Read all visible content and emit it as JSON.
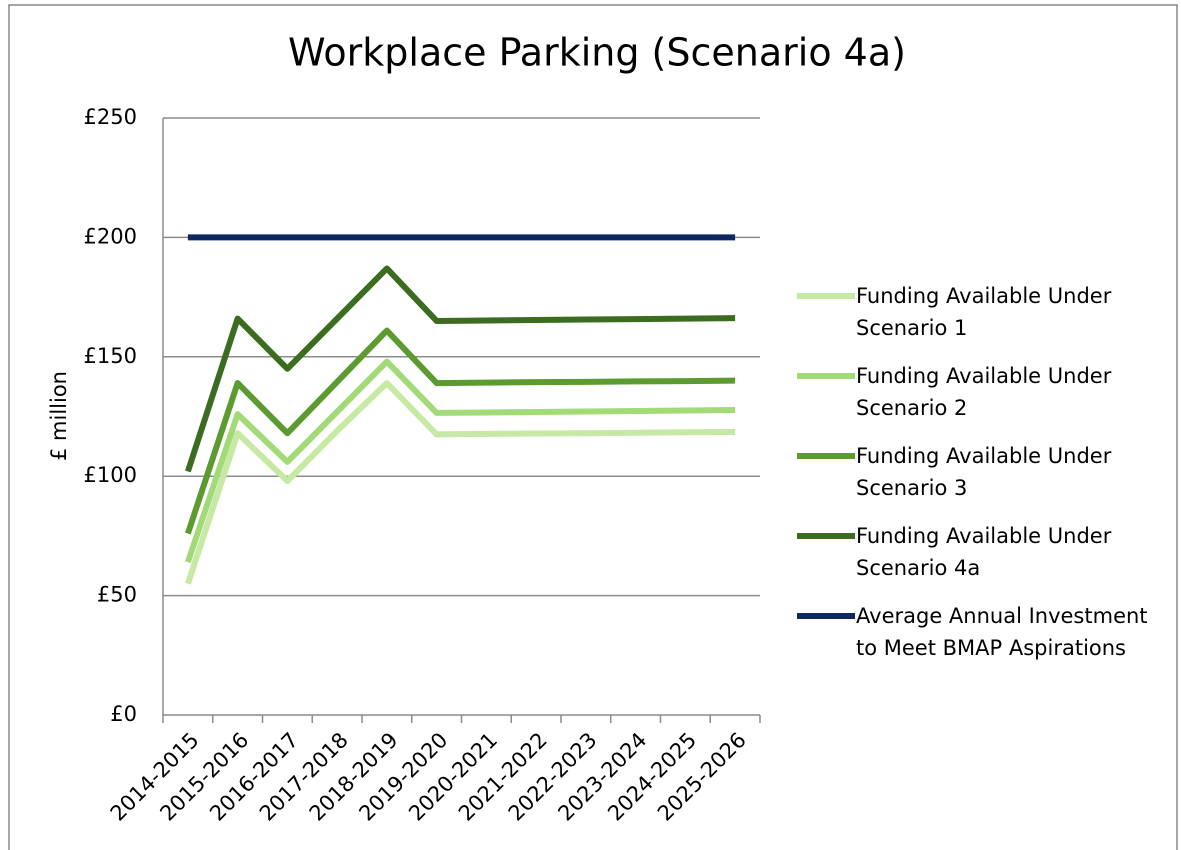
{
  "chart_data": {
    "type": "line",
    "title": "Workplace Parking (Scenario 4a)",
    "y_label": "£ million",
    "categories": [
      "2014-2015",
      "2015-2016",
      "2016-2017",
      "2017-2018",
      "2018-2019",
      "2019-2020",
      "2020-2021",
      "2021-2022",
      "2022-2023",
      "2023-2024",
      "2024-2025",
      "2025-2026"
    ],
    "series": [
      {
        "name": "Funding Available Under Scenario 1",
        "color": "#c6e9a3",
        "values": [
          55,
          118,
          98,
          119,
          139,
          117.5,
          117.7,
          117.9,
          118,
          118.2,
          118.4,
          118.5
        ]
      },
      {
        "name": "Funding Available Under Scenario 2",
        "color": "#a2da78",
        "values": [
          64,
          126,
          106,
          127,
          148,
          126.5,
          126.7,
          126.9,
          127.1,
          127.3,
          127.5,
          127.7
        ]
      },
      {
        "name": "Funding Available Under Scenario 3",
        "color": "#5b9b2f",
        "values": [
          76,
          139,
          118,
          139.5,
          161,
          139,
          139.2,
          139.4,
          139.5,
          139.7,
          139.8,
          140
        ]
      },
      {
        "name": "Funding Available Under Scenario 4a",
        "color": "#3b6c1f",
        "values": [
          102,
          166,
          145,
          166,
          187,
          165,
          165.2,
          165.4,
          165.6,
          165.8,
          166,
          166.2
        ]
      },
      {
        "name": "Average Annual Investment to Meet BMAP Aspirations",
        "color": "#0f2760",
        "values": [
          200,
          200,
          200,
          200,
          200,
          200,
          200,
          200,
          200,
          200,
          200,
          200
        ]
      }
    ],
    "ylim": [
      0,
      250
    ],
    "yticks": [
      {
        "value": 0,
        "label": "£0"
      },
      {
        "value": 50,
        "label": "£50"
      },
      {
        "value": 100,
        "label": "£100"
      },
      {
        "value": 150,
        "label": "£150"
      },
      {
        "value": 200,
        "label": "£200"
      },
      {
        "value": 250,
        "label": "£250"
      }
    ],
    "grid": true,
    "legend": "right"
  }
}
